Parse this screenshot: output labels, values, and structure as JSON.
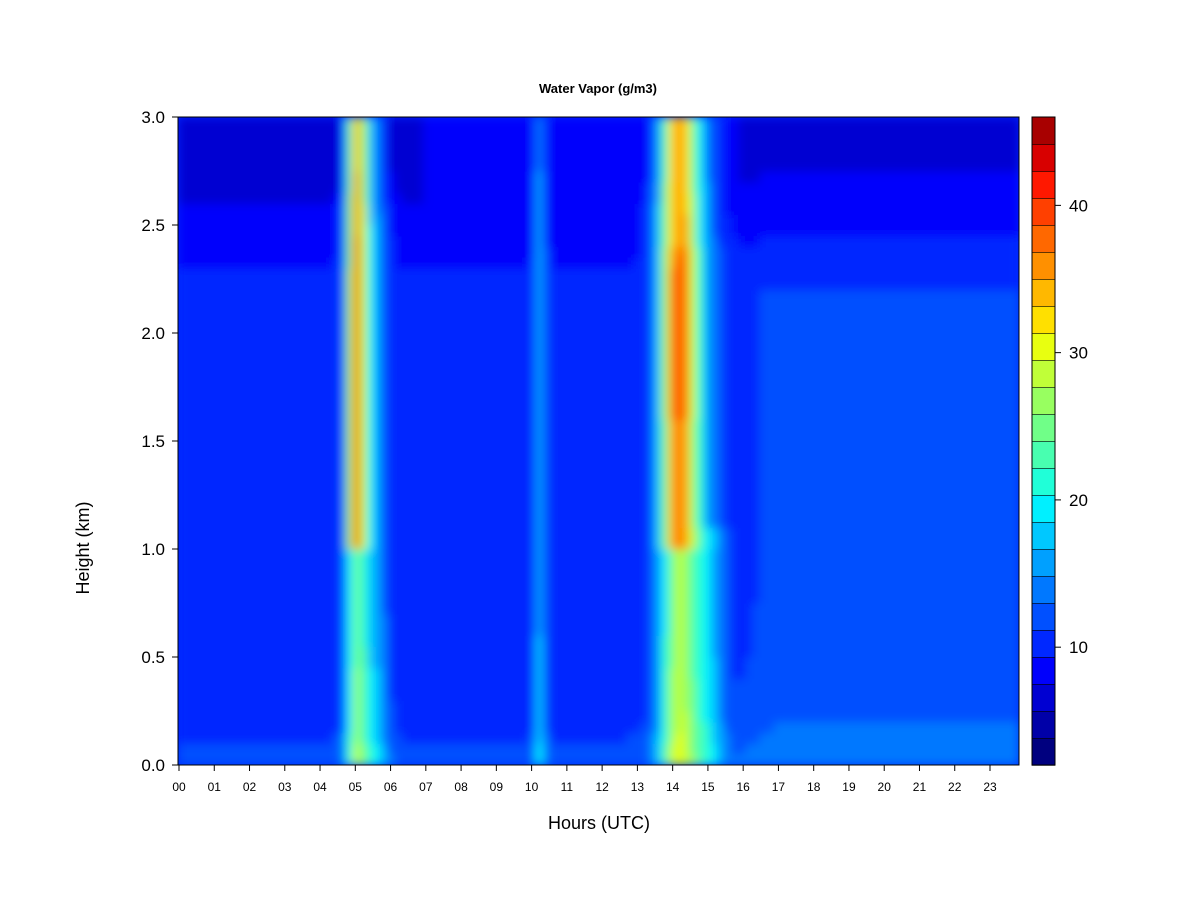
{
  "chart_data": {
    "type": "heatmap",
    "title": "Water Vapor (g/m3)",
    "xlabel": "Hours (UTC)",
    "ylabel": "Height (km)",
    "x_tick_labels": [
      "00",
      "01",
      "02",
      "03",
      "04",
      "05",
      "06",
      "07",
      "08",
      "09",
      "10",
      "11",
      "12",
      "13",
      "14",
      "15",
      "16",
      "17",
      "18",
      "19",
      "20",
      "21",
      "22",
      "23"
    ],
    "y_tick_labels": [
      "0.0",
      "0.5",
      "1.0",
      "1.5",
      "2.0",
      "2.5",
      "3.0"
    ],
    "xlim": [
      0,
      24
    ],
    "ylim": [
      0,
      3.0
    ],
    "colorbar": {
      "min": 2,
      "max": 46,
      "step": 2,
      "tick_labels": [
        "10",
        "20",
        "30",
        "40"
      ],
      "tick_values": [
        10,
        20,
        30,
        40
      ],
      "colors": [
        "#00007f",
        "#0000a8",
        "#0000d2",
        "#0000fc",
        "#0028ff",
        "#0050ff",
        "#0078ff",
        "#00a0ff",
        "#00c8ff",
        "#00f0ff",
        "#20ffd8",
        "#48ffb0",
        "#70ff88",
        "#98ff60",
        "#c0ff38",
        "#e8ff10",
        "#ffe000",
        "#ffb800",
        "#ff9000",
        "#ff6800",
        "#ff4000",
        "#ff1800",
        "#d80000",
        "#a80000"
      ]
    },
    "features": [
      {
        "label": "moist layer near surface",
        "hours": [
          0,
          24
        ],
        "height_km": [
          0,
          0.4
        ],
        "value_gm3": 14
      },
      {
        "label": "plume 05 UTC",
        "hours": [
          4.6,
          6.0
        ],
        "height_km": [
          0,
          3.0
        ],
        "peak_value_gm3": 42
      },
      {
        "label": "plume 10 UTC",
        "hours": [
          10.1,
          10.6
        ],
        "height_km": [
          0,
          3.0
        ],
        "peak_value_gm3": 20
      },
      {
        "label": "plume 14 UTC",
        "hours": [
          13.6,
          15.2
        ],
        "height_km": [
          0,
          3.0
        ],
        "peak_value_gm3": 42
      },
      {
        "label": "dry upper layer",
        "hours": [
          0,
          24
        ],
        "height_km": [
          2.4,
          3.0
        ],
        "value_gm3": 6
      }
    ]
  }
}
